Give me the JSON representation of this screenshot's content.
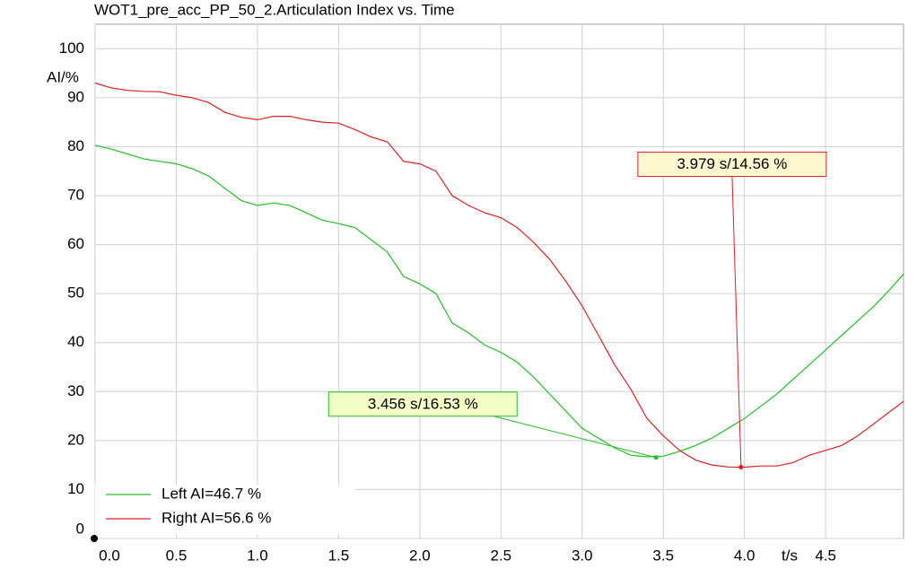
{
  "chart_data": {
    "type": "line",
    "title": "WOT1_pre_acc_PP_50_2.Articulation Index vs. Time",
    "x_label": "t/s",
    "y_label": "AI/%",
    "x": [
      0,
      0.1,
      0.2,
      0.3,
      0.4,
      0.5,
      0.6,
      0.7,
      0.8,
      0.9,
      1.0,
      1.1,
      1.2,
      1.3,
      1.4,
      1.5,
      1.6,
      1.7,
      1.8,
      1.9,
      2.0,
      2.1,
      2.2,
      2.3,
      2.4,
      2.5,
      2.6,
      2.7,
      2.8,
      2.9,
      3.0,
      3.1,
      3.2,
      3.3,
      3.4,
      3.5,
      3.6,
      3.7,
      3.8,
      3.9,
      4.0,
      4.1,
      4.2,
      4.3,
      4.4,
      4.5,
      4.6,
      4.7,
      4.8,
      4.9,
      4.98
    ],
    "series": [
      {
        "name": "Left AI=46.7 %",
        "color": "#22c022",
        "values": [
          80.3,
          79.5,
          78.5,
          77.5,
          77,
          76.5,
          75.5,
          74,
          71.5,
          69,
          68,
          68.5,
          68,
          66.5,
          65,
          64.3,
          63.5,
          61,
          58.5,
          53.5,
          52,
          50,
          44,
          42,
          39.5,
          38,
          36,
          33,
          29.5,
          26,
          22.5,
          20.5,
          18.5,
          17,
          16.7,
          16.8,
          17.8,
          19,
          20.5,
          22.5,
          24.5,
          27,
          29.5,
          32.5,
          35.5,
          38.5,
          41.5,
          44.5,
          47.5,
          51,
          54
        ]
      },
      {
        "name": "Right AI=56.6 %",
        "color": "#e02020",
        "values": [
          93,
          92,
          91.5,
          91.3,
          91.2,
          90.5,
          90,
          89,
          87,
          86,
          85.5,
          86.2,
          86.2,
          85.5,
          85,
          84.8,
          83.5,
          82,
          81,
          77,
          76.5,
          75,
          70,
          68,
          66.5,
          65.5,
          63.5,
          60.5,
          57,
          52.5,
          47.5,
          41.5,
          35.5,
          30.5,
          24.5,
          21,
          18,
          16,
          15,
          14.6,
          14.56,
          14.8,
          14.8,
          15.5,
          17,
          18,
          19,
          21,
          23.5,
          26,
          28
        ]
      }
    ],
    "annotations": [
      {
        "x": 3.456,
        "y": 16.53,
        "label": "3.456 s/16.53 %",
        "color": "#22c022",
        "box_color": "#f4ffc8"
      },
      {
        "x": 3.979,
        "y": 14.56,
        "label": "3.979 s/14.56 %",
        "color": "#e02020",
        "box_color": "#fff8d0"
      }
    ],
    "xlim": [
      0,
      4.98
    ],
    "ylim": [
      0,
      105
    ],
    "xticks": [
      {
        "value": 0,
        "label": "0.0"
      },
      0.5,
      {
        "value": 1,
        "label": "1.0"
      },
      1.5,
      {
        "value": 2,
        "label": "2.0"
      },
      2.5,
      {
        "value": 3,
        "label": "3.0"
      },
      3.5,
      {
        "value": 4,
        "label": "4.0"
      },
      4.5
    ],
    "yticks": [
      0,
      10,
      20,
      30,
      40,
      50,
      60,
      70,
      80,
      90,
      100
    ],
    "grid": true
  }
}
